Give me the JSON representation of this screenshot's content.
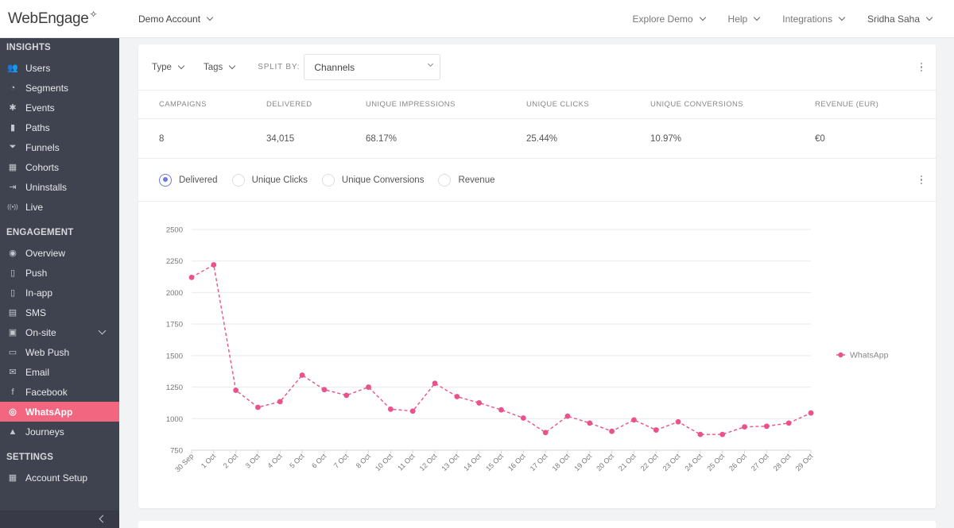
{
  "topbar": {
    "logo": "WebEngage",
    "account": "Demo Account",
    "nav": [
      "Explore Demo",
      "Help",
      "Integrations",
      "Sridha Saha"
    ]
  },
  "sidebar": {
    "sections": [
      {
        "title": "INSIGHTS",
        "items": [
          {
            "label": "Users",
            "icon": "users-icon"
          },
          {
            "label": "Segments",
            "icon": "pie-icon"
          },
          {
            "label": "Events",
            "icon": "star-icon"
          },
          {
            "label": "Paths",
            "icon": "bars-icon"
          },
          {
            "label": "Funnels",
            "icon": "funnel-icon"
          },
          {
            "label": "Cohorts",
            "icon": "grid-icon"
          },
          {
            "label": "Uninstalls",
            "icon": "exit-icon"
          },
          {
            "label": "Live",
            "icon": "broadcast-icon"
          }
        ]
      },
      {
        "title": "ENGAGEMENT",
        "items": [
          {
            "label": "Overview",
            "icon": "eye-icon"
          },
          {
            "label": "Push",
            "icon": "phone-notify-icon"
          },
          {
            "label": "In-app",
            "icon": "phone-icon"
          },
          {
            "label": "SMS",
            "icon": "chat-icon"
          },
          {
            "label": "On-site",
            "icon": "window-icon",
            "expandable": true
          },
          {
            "label": "Web Push",
            "icon": "browser-notify-icon"
          },
          {
            "label": "Email",
            "icon": "mail-icon"
          },
          {
            "label": "Facebook",
            "icon": "facebook-icon"
          },
          {
            "label": "WhatsApp",
            "icon": "whatsapp-icon",
            "active": true
          },
          {
            "label": "Journeys",
            "icon": "rocket-icon"
          }
        ]
      },
      {
        "title": "SETTINGS",
        "items": [
          {
            "label": "Account Setup",
            "icon": "tiles-icon"
          }
        ]
      }
    ]
  },
  "filters": {
    "type_label": "Type",
    "tags_label": "Tags",
    "split_label": "SPLIT BY:",
    "split_value": "Channels"
  },
  "stats": {
    "headers": [
      "CAMPAIGNS",
      "DELIVERED",
      "UNIQUE IMPRESSIONS",
      "UNIQUE CLICKS",
      "UNIQUE CONVERSIONS",
      "REVENUE (EUR)"
    ],
    "values": [
      "8",
      "34,015",
      "68.17%",
      "25.44%",
      "10.97%",
      "€0"
    ]
  },
  "metrics": {
    "options": [
      "Delivered",
      "Unique Clicks",
      "Unique Conversions",
      "Revenue"
    ],
    "selected": "Delivered"
  },
  "colors": {
    "accent": "#f2677f",
    "radio": "#6f79e0",
    "sidebar": "#3f4350"
  },
  "chart_data": {
    "type": "line",
    "categories": [
      "30 Sep",
      "1 Oct",
      "2 Oct",
      "3 Oct",
      "4 Oct",
      "5 Oct",
      "6 Oct",
      "7 Oct",
      "8 Oct",
      "10 Oct",
      "11 Oct",
      "12 Oct",
      "13 Oct",
      "14 Oct",
      "15 Oct",
      "16 Oct",
      "17 Oct",
      "18 Oct",
      "19 Oct",
      "20 Oct",
      "21 Oct",
      "22 Oct",
      "23 Oct",
      "24 Oct",
      "25 Oct",
      "26 Oct",
      "27 Oct",
      "28 Oct",
      "29 Oct"
    ],
    "series": [
      {
        "name": "WhatsApp",
        "color": "#e9528a",
        "values": [
          2120,
          2220,
          1225,
          1090,
          1135,
          1345,
          1230,
          1185,
          1250,
          1075,
          1060,
          1280,
          1175,
          1125,
          1070,
          1005,
          890,
          1020,
          965,
          900,
          990,
          910,
          975,
          875,
          875,
          935,
          940,
          965,
          1045
        ]
      }
    ],
    "yticks": [
      750,
      1000,
      1250,
      1500,
      1750,
      2000,
      2250,
      2500
    ],
    "ylim": [
      750,
      2500
    ],
    "grid": true,
    "line_style": "dashed",
    "legend": "right"
  }
}
